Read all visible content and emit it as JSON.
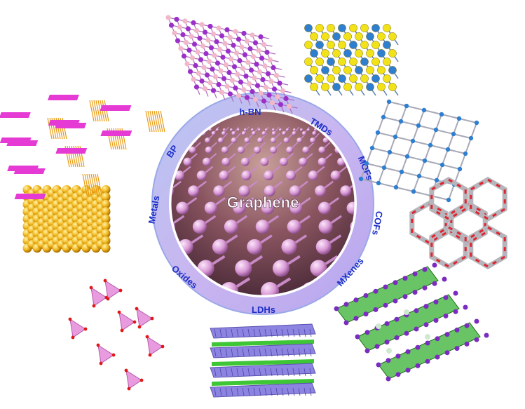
{
  "center": {
    "label": "Graphene"
  },
  "ring_labels": [
    {
      "id": "hbn",
      "text": "h-BN"
    },
    {
      "id": "tmds",
      "text": "TMDs"
    },
    {
      "id": "mofs",
      "text": "MOFs"
    },
    {
      "id": "cofs",
      "text": "COFs"
    },
    {
      "id": "mxenes",
      "text": "MXenes"
    },
    {
      "id": "ldhs",
      "text": "LDHs"
    },
    {
      "id": "oxides",
      "text": "Oxides"
    },
    {
      "id": "metals",
      "text": "Metals"
    },
    {
      "id": "bp",
      "text": "BP"
    }
  ],
  "colors": {
    "ring_outer": "#b8c2f0",
    "ring_inner": "#c7a8ec",
    "label_text": "#1c2fc8",
    "graphene_atom": "#d9a0d6",
    "graphene_bg": "#6b3f4a",
    "hbn_b": "#f0b8c8",
    "hbn_n": "#9a30c8",
    "tmd_metal": "#2f7fd0",
    "tmd_chalcogen": "#f2e21a",
    "mof_node": "#2f7fd0",
    "mof_linker": "#a9a9b8",
    "cof_ring": "#e02430",
    "mxene_green": "#36b030",
    "mxene_purple": "#7b2cc0",
    "ldh_slab": "#8c84e0",
    "ldh_interlayer": "#3ec636",
    "oxide_tetra": "#e48ad8",
    "oxide_vertex": "#e01818",
    "metal_atom": "#f2b820",
    "bp_pink": "#e53ad4",
    "bp_orange": "#e89a12"
  }
}
